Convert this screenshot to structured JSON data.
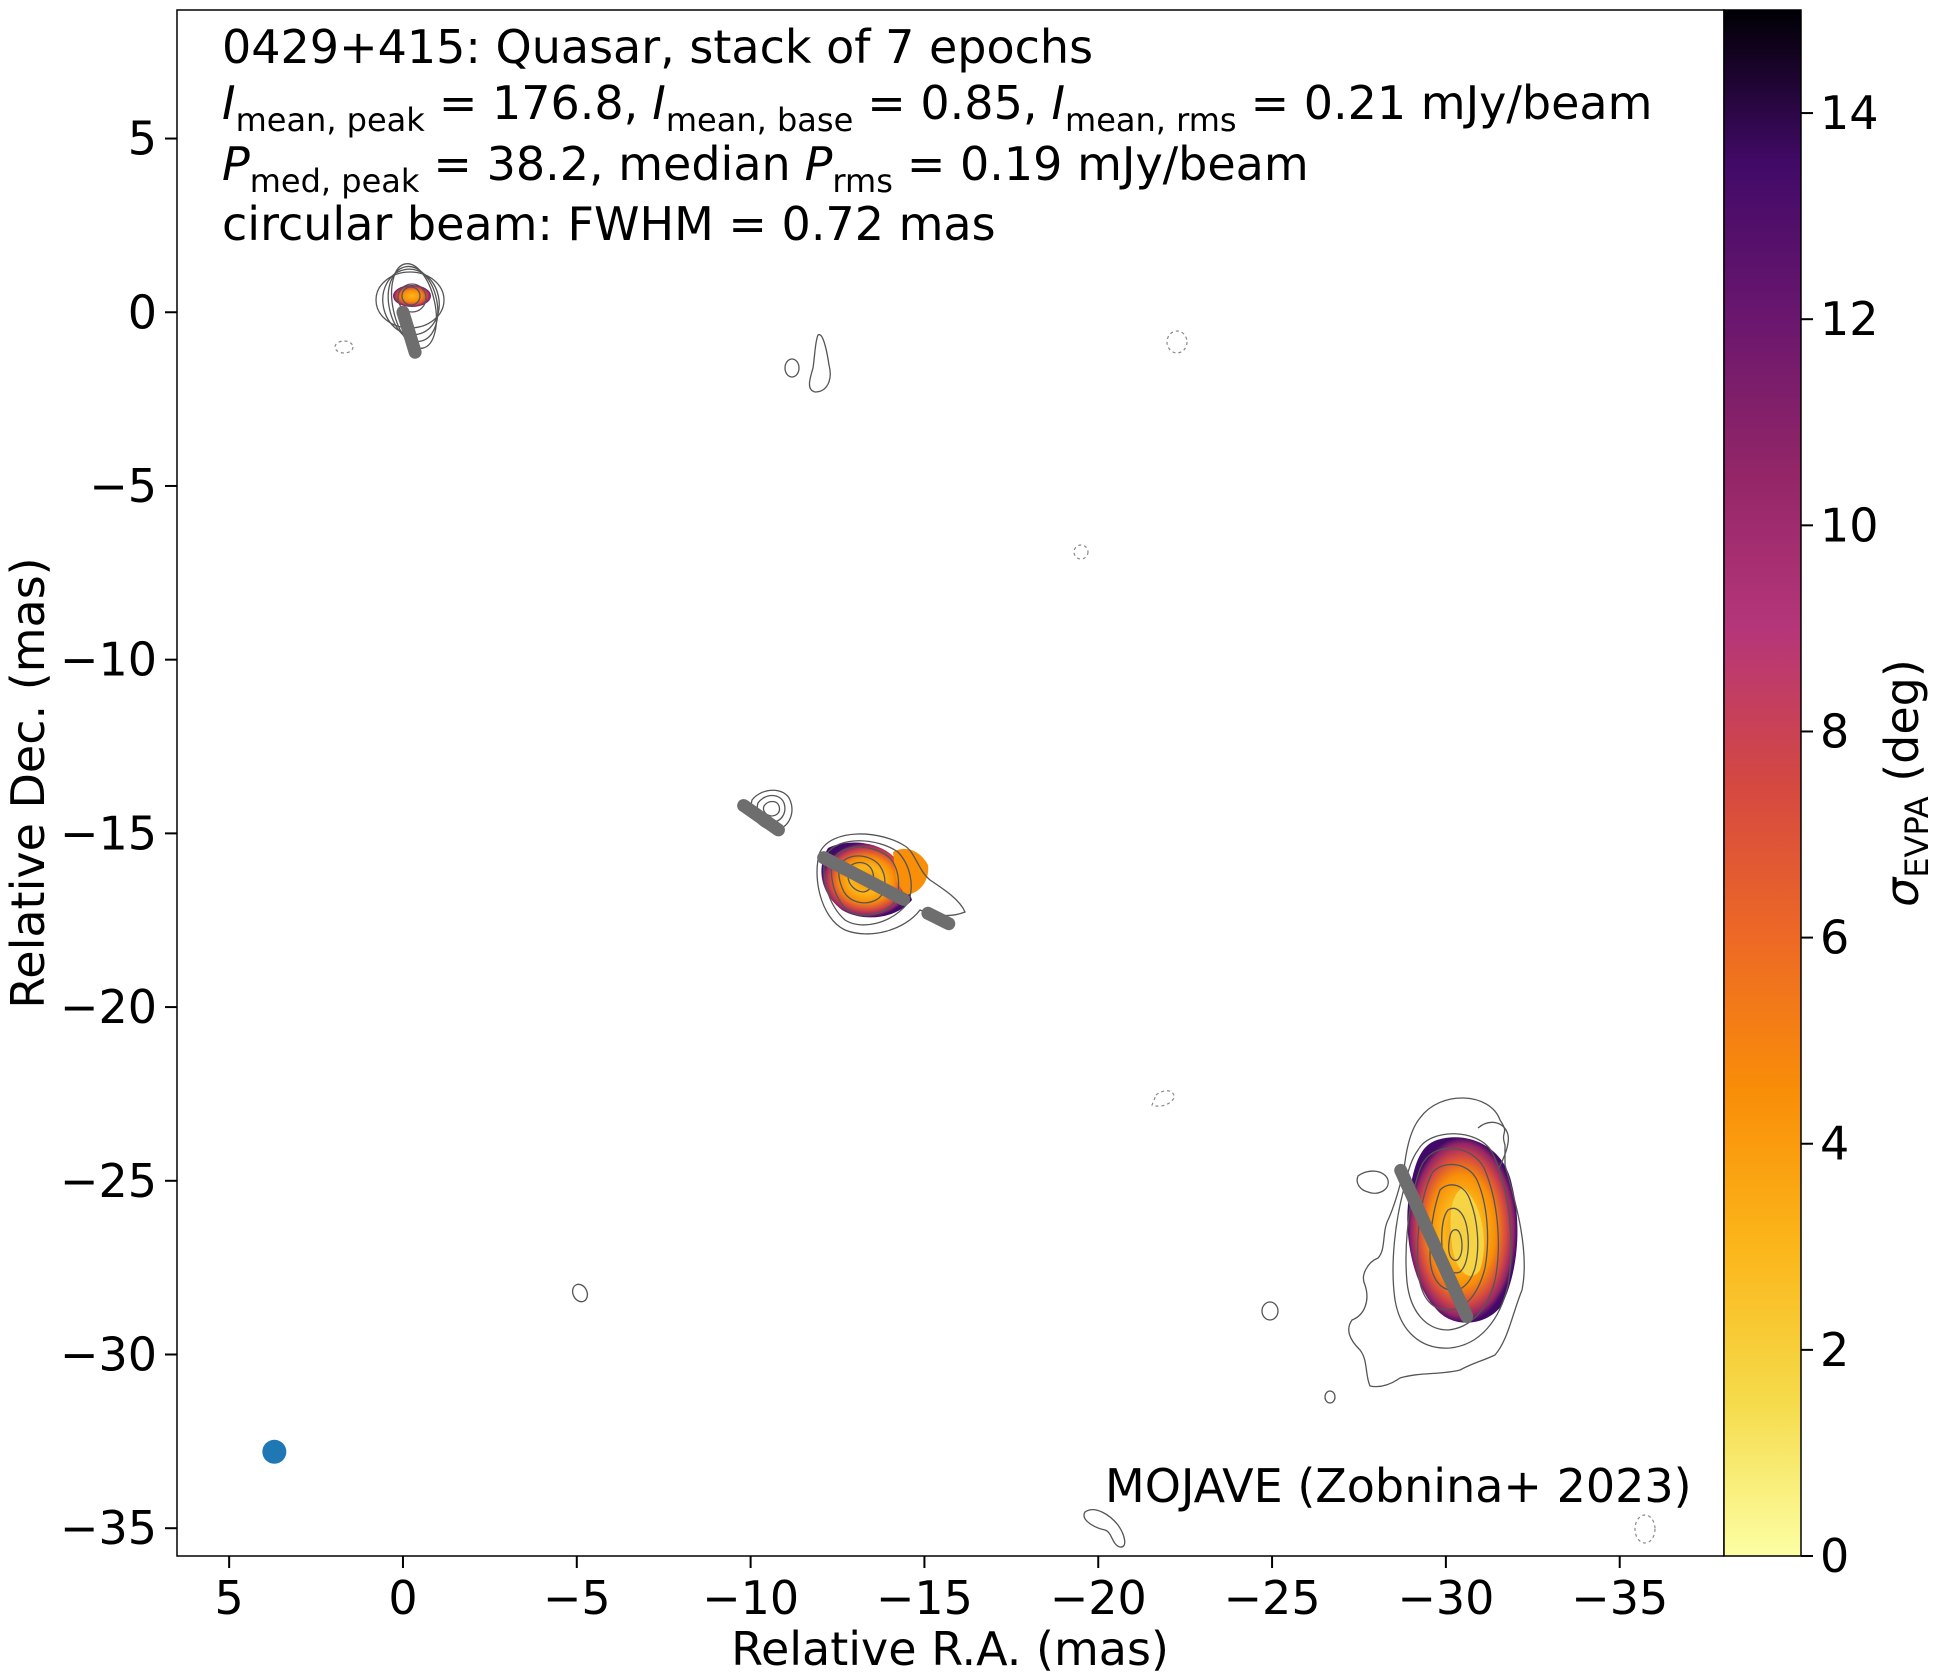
{
  "chart_data": {
    "type": "heatmap",
    "title_lines": [
      "0429+415: Quasar, stack of 7 epochs",
      "= 176.8,",
      "= 0.85,",
      "= 0.21 mJy/beam",
      "= 38.2, median",
      "= 0.19 mJy/beam",
      "circular beam: FWHM = 0.72 mas"
    ],
    "symbols": {
      "I": "I",
      "P": "P",
      "mean_peak": "mean, peak",
      "mean_base": "mean, base",
      "mean_rms": "mean, rms",
      "med_peak": "med, peak",
      "rms": "rms"
    },
    "xlabel": "Relative R.A. (mas)",
    "ylabel": "Relative Dec. (mas)",
    "xlim": [
      6.5,
      -38.0
    ],
    "ylim": [
      -35.8,
      8.7
    ],
    "xticks": [
      5,
      0,
      -5,
      -10,
      -15,
      -20,
      -25,
      -30,
      -35
    ],
    "xtick_labels": [
      "5",
      "0",
      "−5",
      "−10",
      "−15",
      "−20",
      "−25",
      "−30",
      "−35"
    ],
    "yticks": [
      5,
      0,
      -5,
      -10,
      -15,
      -20,
      -25,
      -30,
      -35
    ],
    "ytick_labels": [
      "5",
      "0",
      "−5",
      "−10",
      "−15",
      "−20",
      "−25",
      "−30",
      "−35"
    ],
    "colorbar": {
      "label_sym": "σ",
      "label_sub": "EVPA",
      "label_unit": " (deg)",
      "range": [
        0,
        15
      ],
      "ticks": [
        0,
        2,
        4,
        6,
        8,
        10,
        12,
        14
      ],
      "tick_labels": [
        "0",
        "2",
        "4",
        "6",
        "8",
        "10",
        "12",
        "14"
      ],
      "colormap": "inferno_r"
    },
    "credit": "MOJAVE (Zobnina+ 2023)",
    "beam": {
      "ra": 3.7,
      "dec": -32.8,
      "fwhm_mas": 0.72,
      "color": "#1f77b4"
    },
    "components": [
      {
        "ra": 0.0,
        "dec": 0.0,
        "peak_sigma": 5.5
      },
      {
        "ra": -12.8,
        "dec": -16.6,
        "peak_sigma": 4.0
      },
      {
        "ra": -30.0,
        "dec": -27.0,
        "peak_sigma": 3.0
      }
    ],
    "evpa_sticks": [
      {
        "from": [
          0.0,
          0.0
        ],
        "to": [
          -0.35,
          -1.15
        ]
      },
      {
        "from": [
          -9.8,
          -14.2
        ],
        "to": [
          -10.8,
          -14.9
        ]
      },
      {
        "from": [
          -12.1,
          -15.7
        ],
        "to": [
          -14.4,
          -16.9
        ]
      },
      {
        "from": [
          -15.1,
          -17.3
        ],
        "to": [
          -15.7,
          -17.6
        ]
      },
      {
        "from": [
          -28.7,
          -24.7
        ],
        "to": [
          -30.6,
          -28.9
        ]
      }
    ]
  }
}
